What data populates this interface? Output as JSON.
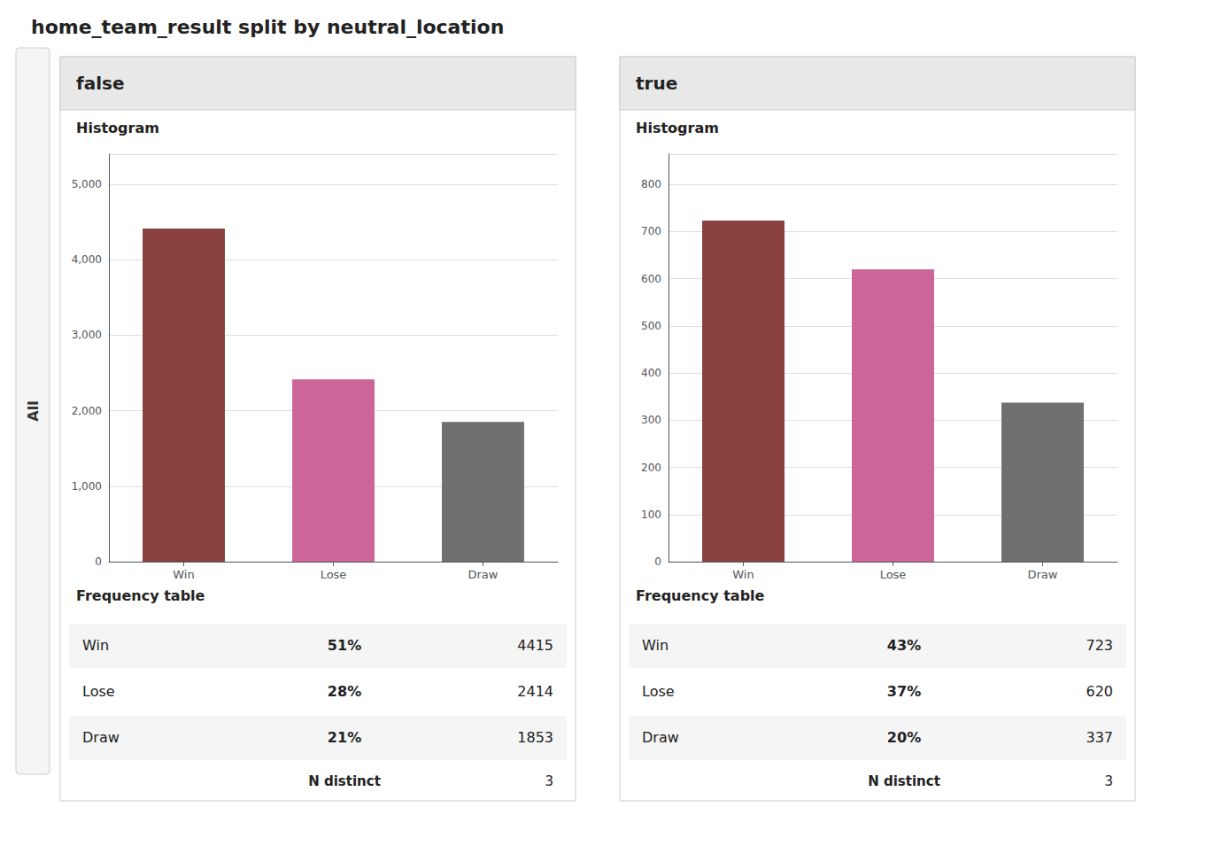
{
  "title": "home_team_result split by neutral_location",
  "annotations": [
    "All"
  ],
  "chart_data": [
    {
      "type": "bar",
      "title": "false",
      "categories": [
        "Win",
        "Lose",
        "Draw"
      ],
      "values": [
        4415,
        2414,
        1853
      ],
      "colors": [
        "#8B4040",
        "#CC6699",
        "#707070"
      ],
      "ylim": [
        0,
        5400
      ],
      "yticks": [
        0,
        {
          "value": 1000,
          "label": "1,000"
        },
        {
          "value": 2000,
          "label": "2,000"
        },
        {
          "value": 3000,
          "label": "3,000"
        },
        {
          "value": 4000,
          "label": "4,000"
        },
        {
          "value": 5000,
          "label": "5,000"
        }
      ],
      "grid": true,
      "annotations": [
        "Histogram"
      ],
      "table": {
        "title": "Frequency table",
        "rows": [
          [
            "Win",
            "51%",
            "4415"
          ],
          [
            "Lose",
            "28%",
            "2414"
          ],
          [
            "Draw",
            "21%",
            "1853"
          ]
        ],
        "footer": [
          "N distinct",
          "3"
        ]
      }
    },
    {
      "type": "bar",
      "title": "true",
      "categories": [
        "Win",
        "Lose",
        "Draw"
      ],
      "values": [
        723,
        620,
        337
      ],
      "colors": [
        "#8B4040",
        "#CC6699",
        "#707070"
      ],
      "ylim": [
        0,
        864
      ],
      "yticks": [
        0,
        100,
        200,
        300,
        400,
        500,
        600,
        700,
        800
      ],
      "grid": true,
      "annotations": [
        "Histogram"
      ],
      "table": {
        "title": "Frequency table",
        "rows": [
          [
            "Win",
            "43%",
            "723"
          ],
          [
            "Lose",
            "37%",
            "620"
          ],
          [
            "Draw",
            "20%",
            "337"
          ]
        ],
        "footer": [
          "N distinct",
          "3"
        ]
      }
    }
  ]
}
